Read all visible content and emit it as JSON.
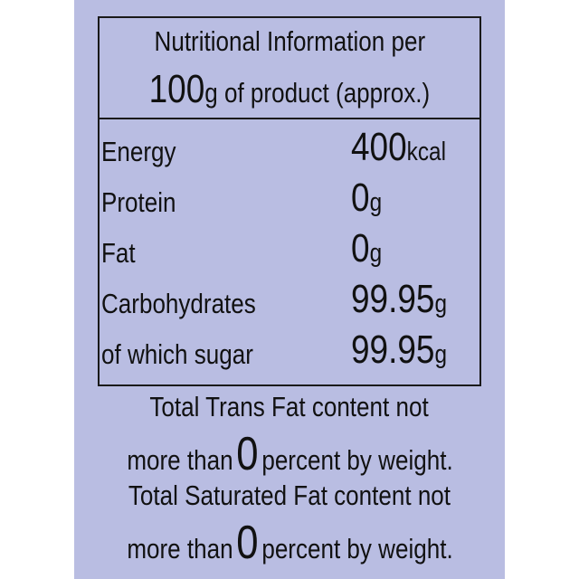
{
  "header": {
    "line1": "Nutritional Information per",
    "amount": "100",
    "line2": "g of product (approx.)"
  },
  "rows": [
    {
      "name": "Energy",
      "value": "400",
      "unit": "kcal"
    },
    {
      "name": "Protein",
      "value": "0",
      "unit": "g"
    },
    {
      "name": "Fat",
      "value": "0",
      "unit": "g"
    },
    {
      "name": "Carbohydrates",
      "value": "99.95",
      "unit": "g"
    },
    {
      "name": "of which sugar",
      "value": "99.95",
      "unit": "g"
    }
  ],
  "notes": [
    {
      "line1": "Total Trans Fat content not",
      "prefix": "more than",
      "value": "0",
      "suffix": "percent by weight."
    },
    {
      "line1": "Total Saturated Fat content not",
      "prefix": "more than",
      "value": "0",
      "suffix": "percent by weight."
    }
  ]
}
